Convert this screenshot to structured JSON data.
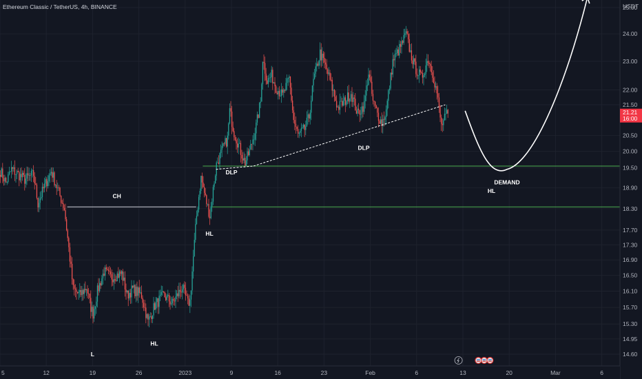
{
  "window": {
    "title": "Ethereum Classic / TetherUS, 4h, BINANCE",
    "currency": "USDT"
  },
  "price_label": {
    "price": "21.21",
    "countdown": "16:00",
    "color": "#f23645"
  },
  "colors": {
    "up": "#26a69a",
    "down": "#ef5350",
    "level_line": "#4caf50",
    "ch_line": "#d1d4dc",
    "background": "#131722"
  },
  "icons": [
    "lightning-icon",
    "flag-icon",
    "flag-icon",
    "flag-icon"
  ],
  "chart_data": {
    "type": "candlestick",
    "title": "Ethereum Classic / TetherUS, 4h, BINANCE",
    "y_axis": {
      "unit": "USDT",
      "scale": "log",
      "ylim": [
        14.3,
        25.8
      ],
      "ticks": [
        "25.00",
        "24.00",
        "23.00",
        "22.00",
        "21.50",
        "20.50",
        "20.00",
        "19.50",
        "18.90",
        "18.30",
        "17.70",
        "17.30",
        "16.90",
        "16.50",
        "16.10",
        "15.70",
        "15.30",
        "14.95",
        "14.60"
      ]
    },
    "x_axis": {
      "ticks": [
        {
          "label": "5",
          "idx": 0
        },
        {
          "label": "12",
          "idx": 42
        },
        {
          "label": "19",
          "idx": 84
        },
        {
          "label": "26",
          "idx": 126
        },
        {
          "label": "2023",
          "idx": 168
        },
        {
          "label": "9",
          "idx": 210
        },
        {
          "label": "16",
          "idx": 252
        },
        {
          "label": "23",
          "idx": 294
        },
        {
          "label": "Feb",
          "idx": 336
        },
        {
          "label": "6",
          "idx": 378
        },
        {
          "label": "13",
          "idx": 420
        },
        {
          "label": "20",
          "idx": 462
        },
        {
          "label": "Mar",
          "idx": 504
        },
        {
          "label": "6",
          "idx": 546
        }
      ]
    },
    "keypoints": [
      [
        0,
        19.4
      ],
      [
        5,
        19.05
      ],
      [
        10,
        19.45
      ],
      [
        22,
        19.15
      ],
      [
        30,
        19.3
      ],
      [
        34,
        18.45
      ],
      [
        40,
        18.95
      ],
      [
        46,
        19.4
      ],
      [
        52,
        18.85
      ],
      [
        58,
        18.3
      ],
      [
        62,
        17.2
      ],
      [
        66,
        16.15
      ],
      [
        72,
        16.0
      ],
      [
        78,
        16.2
      ],
      [
        82,
        15.7
      ],
      [
        84,
        15.55
      ],
      [
        88,
        16.1
      ],
      [
        94,
        16.6
      ],
      [
        100,
        16.45
      ],
      [
        110,
        16.55
      ],
      [
        115,
        16.0
      ],
      [
        120,
        16.15
      ],
      [
        128,
        16.0
      ],
      [
        134,
        15.35
      ],
      [
        140,
        15.75
      ],
      [
        148,
        16.0
      ],
      [
        156,
        15.8
      ],
      [
        165,
        16.2
      ],
      [
        170,
        15.8
      ],
      [
        172,
        15.85
      ],
      [
        178,
        18.1
      ],
      [
        182,
        19.2
      ],
      [
        186,
        18.6
      ],
      [
        190,
        18.1
      ],
      [
        196,
        19.6
      ],
      [
        202,
        20.1
      ],
      [
        206,
        20.4
      ],
      [
        208,
        21.3
      ],
      [
        212,
        20.6
      ],
      [
        218,
        20.0
      ],
      [
        222,
        19.65
      ],
      [
        226,
        20.0
      ],
      [
        232,
        20.8
      ],
      [
        236,
        21.6
      ],
      [
        238,
        23.1
      ],
      [
        242,
        22.3
      ],
      [
        246,
        22.5
      ],
      [
        250,
        22.1
      ],
      [
        256,
        21.8
      ],
      [
        262,
        22.4
      ],
      [
        266,
        21.0
      ],
      [
        270,
        20.5
      ],
      [
        276,
        20.7
      ],
      [
        280,
        21.1
      ],
      [
        284,
        22.3
      ],
      [
        290,
        23.3
      ],
      [
        296,
        22.7
      ],
      [
        300,
        22.2
      ],
      [
        306,
        21.4
      ],
      [
        312,
        21.6
      ],
      [
        318,
        21.9
      ],
      [
        324,
        21.2
      ],
      [
        330,
        21.5
      ],
      [
        334,
        22.6
      ],
      [
        338,
        21.6
      ],
      [
        342,
        21.2
      ],
      [
        346,
        20.9
      ],
      [
        350,
        21.3
      ],
      [
        356,
        23.0
      ],
      [
        360,
        23.3
      ],
      [
        364,
        23.6
      ],
      [
        368,
        24.0
      ],
      [
        372,
        23.3
      ],
      [
        376,
        22.8
      ],
      [
        382,
        22.4
      ],
      [
        388,
        23.1
      ],
      [
        392,
        22.6
      ],
      [
        396,
        21.9
      ],
      [
        400,
        20.8
      ],
      [
        404,
        21.1
      ],
      [
        406,
        21.21
      ]
    ],
    "levels": [
      {
        "name": "upper",
        "price": 19.55
      },
      {
        "name": "lower",
        "price": 18.35
      }
    ],
    "annotations": [
      {
        "text": "CH",
        "kind": "label"
      },
      {
        "text": "L",
        "kind": "label"
      },
      {
        "text": "HL",
        "kind": "label"
      },
      {
        "text": "HL",
        "kind": "label"
      },
      {
        "text": "DLP",
        "kind": "label"
      },
      {
        "text": "DLP",
        "kind": "label"
      },
      {
        "text": "DEMAND",
        "kind": "label"
      },
      {
        "text": "HL",
        "kind": "label"
      }
    ]
  }
}
